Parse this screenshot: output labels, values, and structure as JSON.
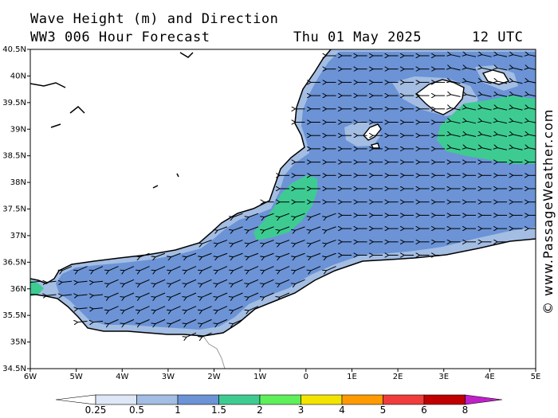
{
  "header": {
    "title": "Wave Height (m) and Direction",
    "subtitle": "WW3 006 Hour Forecast",
    "date": "Thu 01 May 2025",
    "time": "12 UTC"
  },
  "map": {
    "lat_labels": [
      "40.5N",
      "40N",
      "39.5N",
      "39N",
      "38.5N",
      "38N",
      "37.5N",
      "37N",
      "36.5N",
      "36N",
      "35.5N",
      "35N",
      "34.5N"
    ],
    "lon_labels": [
      "6W",
      "5W",
      "4W",
      "3W",
      "2W",
      "1W",
      "0",
      "1E",
      "2E",
      "3E",
      "4E",
      "5E"
    ],
    "colors": {
      "land": "#ffffff",
      "wave_0_5_1": "#a3bde3",
      "wave_1_1_5": "#6b93d6",
      "wave_1_5_2": "#3ecb92",
      "arrow": "#000000"
    },
    "predominant_wave_direction": "west"
  },
  "legend": {
    "labels": [
      "0.25",
      "0.5",
      "1",
      "1.5",
      "2",
      "3",
      "4",
      "5",
      "6",
      "8"
    ],
    "colors": [
      "#ffffff",
      "#dde7f6",
      "#a3bde3",
      "#6b93d6",
      "#3ecb92",
      "#5ef05a",
      "#f2e400",
      "#ff9a00",
      "#f03c3c",
      "#c00000",
      "#c020c8"
    ]
  },
  "watermark": "© www.PassageWeather.com"
}
